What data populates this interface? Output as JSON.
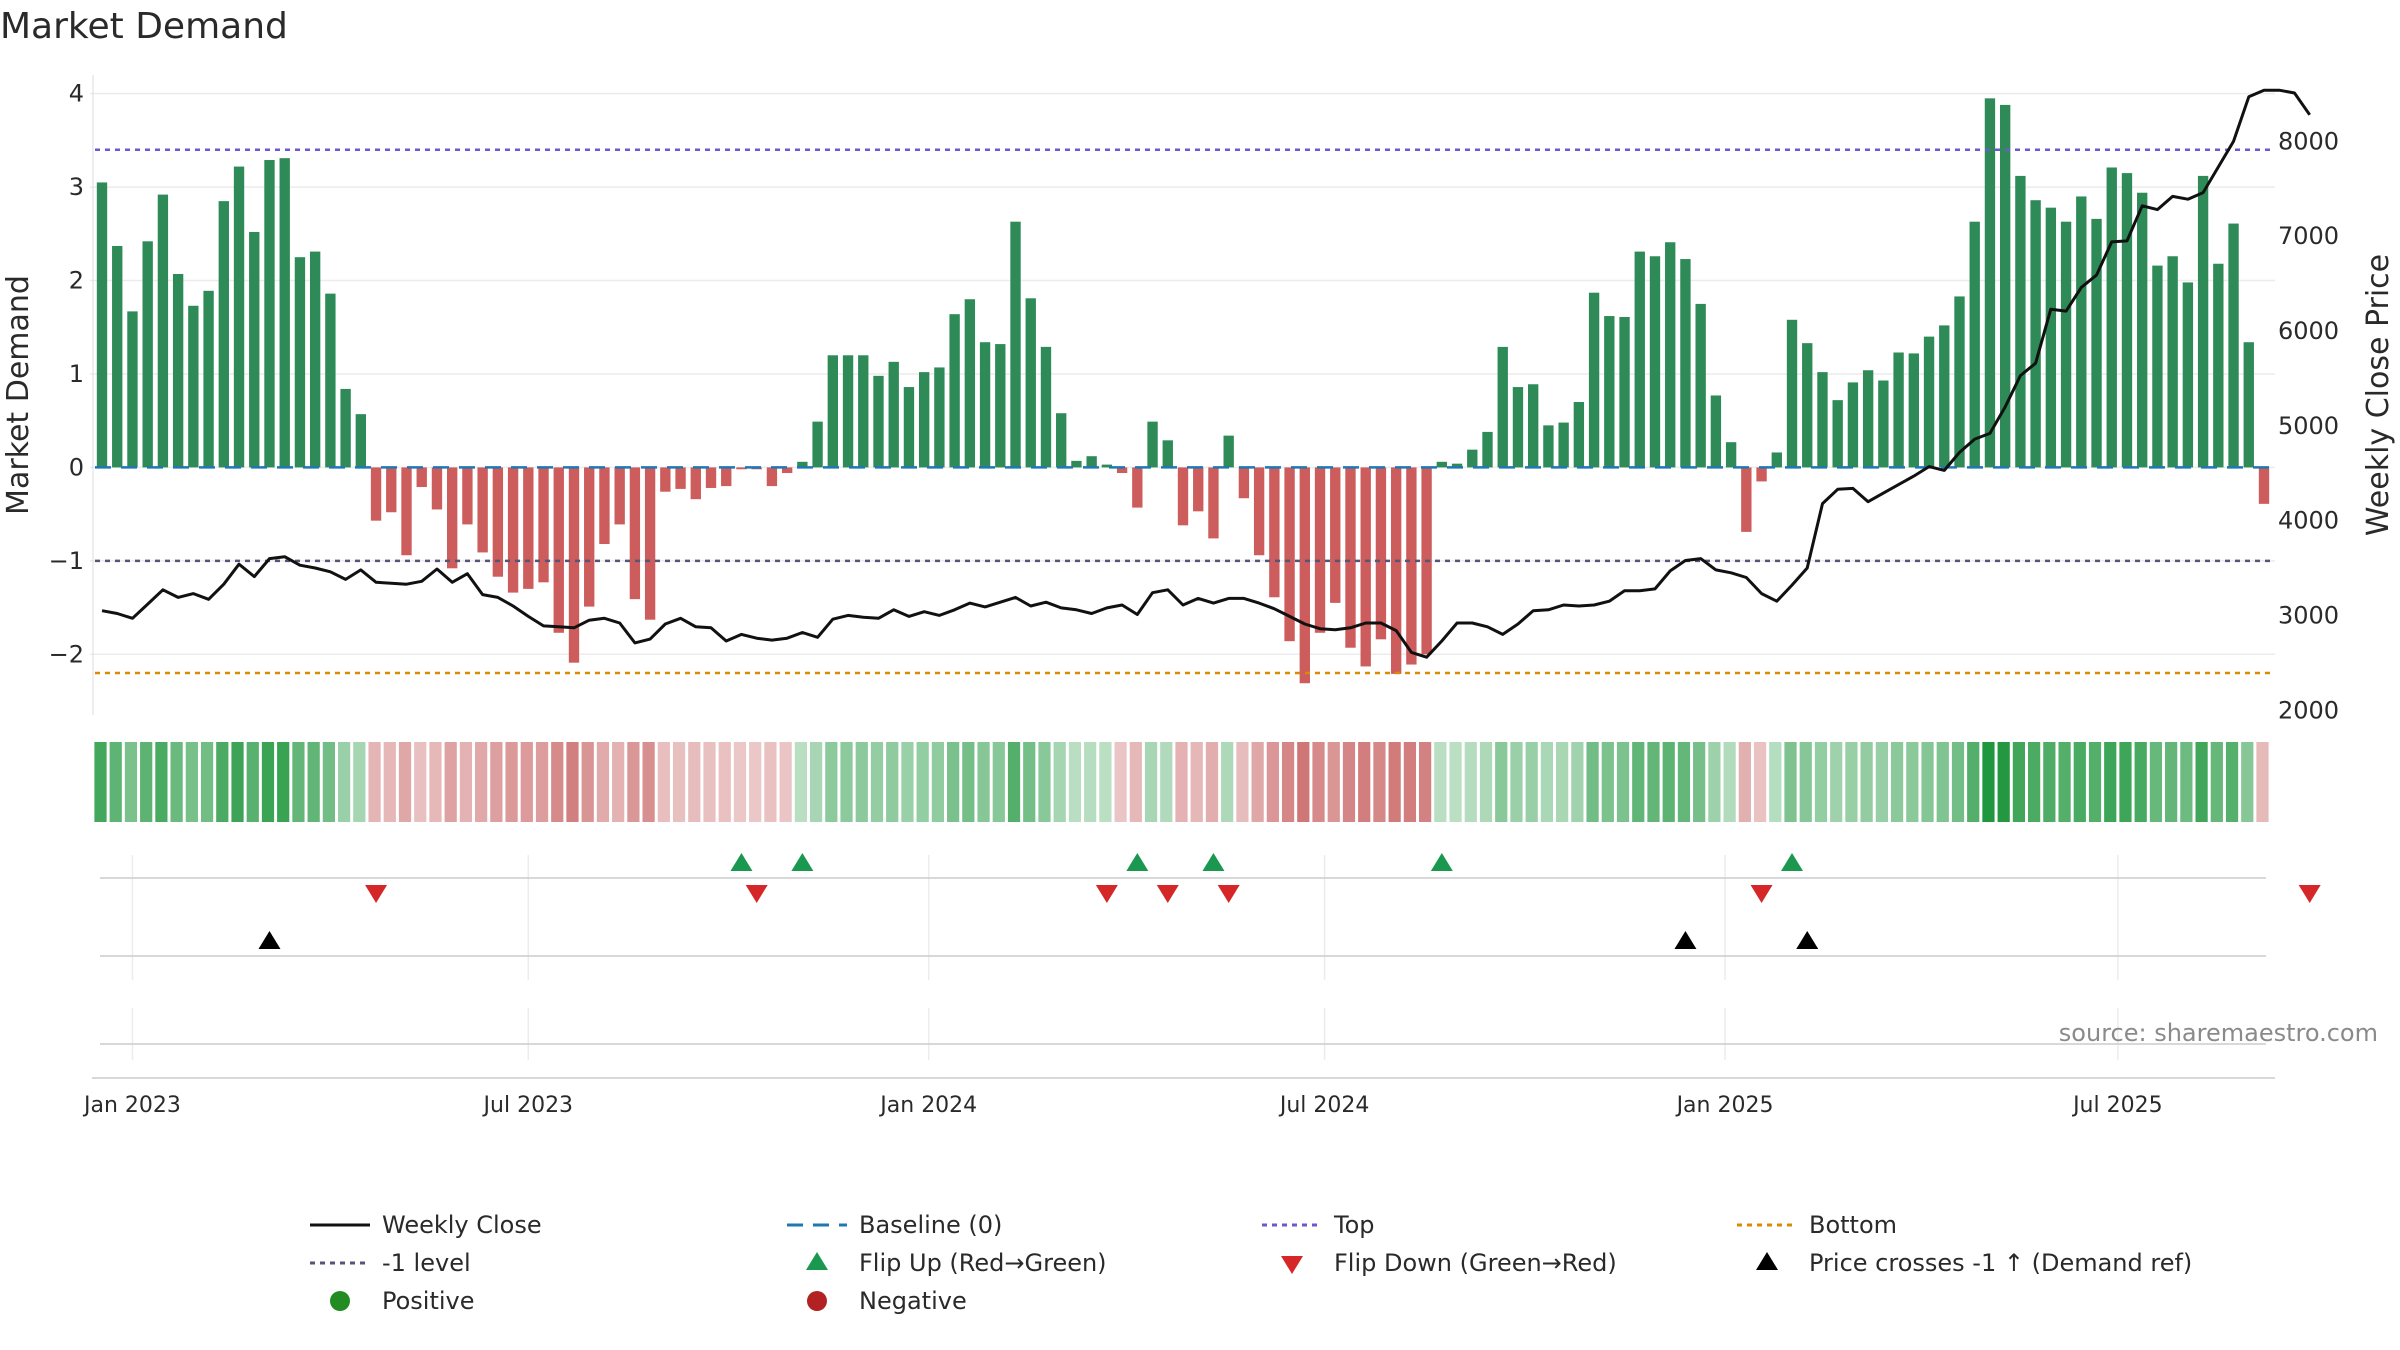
{
  "chart_data": {
    "type": "bar",
    "title": "Market Demand",
    "ylabel_left": "Market Demand",
    "ylabel_right": "Weekly Close Price",
    "ylim_left": [
      -2.65,
      4.2
    ],
    "ylim_right": [
      1950,
      8700
    ],
    "yticks_left": [
      "4",
      "3",
      "2",
      "1",
      "0",
      "−1",
      "−2"
    ],
    "yticks_left_values": [
      4,
      3,
      2,
      1,
      0,
      -1,
      -2
    ],
    "yticks_right": [
      "8000",
      "7000",
      "6000",
      "5000",
      "4000",
      "3000",
      "2000"
    ],
    "yticks_right_values": [
      8000,
      7000,
      6000,
      5000,
      4000,
      3000,
      2000
    ],
    "reference_lines": {
      "top": 3.4,
      "minus_one": -1,
      "bottom": -2.2,
      "baseline": 0
    },
    "x_start_date": "2022-12-19",
    "x_ticks": [
      {
        "label": "Jan 2023",
        "week": 2.0
      },
      {
        "label": "Jul 2023",
        "week": 28.0
      },
      {
        "label": "Jan 2024",
        "week": 54.3
      },
      {
        "label": "Jul 2024",
        "week": 80.3
      },
      {
        "label": "Jan 2025",
        "week": 106.6
      },
      {
        "label": "Jul 2025",
        "week": 132.4
      }
    ],
    "demand": [
      3.05,
      2.37,
      1.67,
      2.42,
      2.92,
      2.07,
      1.73,
      1.89,
      2.85,
      3.22,
      2.52,
      3.29,
      3.31,
      2.25,
      2.31,
      1.86,
      0.84,
      0.57,
      -0.57,
      -0.48,
      -0.94,
      -0.21,
      -0.45,
      -1.08,
      -0.61,
      -0.91,
      -1.17,
      -1.34,
      -1.3,
      -1.23,
      -1.77,
      -2.09,
      -1.49,
      -0.82,
      -0.61,
      -1.41,
      -1.63,
      -0.26,
      -0.23,
      -0.34,
      -0.22,
      -0.2,
      -0.02,
      -0.02,
      -0.2,
      -0.06,
      0.06,
      0.49,
      1.2,
      1.2,
      1.2,
      0.98,
      1.13,
      0.86,
      1.02,
      1.07,
      1.64,
      1.8,
      1.34,
      1.32,
      2.63,
      1.81,
      1.29,
      0.58,
      0.07,
      0.12,
      0.03,
      -0.06,
      -0.43,
      0.49,
      0.29,
      -0.62,
      -0.47,
      -0.76,
      0.34,
      -0.33,
      -0.94,
      -1.39,
      -1.86,
      -2.31,
      -1.77,
      -1.45,
      -1.93,
      -2.13,
      -1.84,
      -2.21,
      -2.11,
      -2.0,
      0.06,
      0.04,
      0.19,
      0.38,
      1.29,
      0.86,
      0.89,
      0.45,
      0.48,
      0.7,
      1.87,
      1.62,
      1.61,
      2.31,
      2.26,
      2.41,
      2.23,
      1.75,
      0.77,
      0.27,
      -0.69,
      -0.15,
      0.16,
      1.58,
      1.33,
      1.02,
      0.72,
      0.91,
      1.04,
      0.93,
      1.23,
      1.22,
      1.4,
      1.52,
      1.83,
      2.63,
      3.95,
      3.88,
      3.12,
      2.86,
      2.78,
      2.63,
      2.9,
      2.66,
      3.21,
      3.15,
      2.94,
      2.16,
      2.26,
      1.98,
      3.12,
      2.18,
      2.61,
      1.34,
      -0.39
    ],
    "weekly_close": [
      3050,
      3020,
      2970,
      3120,
      3270,
      3190,
      3230,
      3170,
      3330,
      3540,
      3410,
      3600,
      3620,
      3530,
      3500,
      3460,
      3380,
      3480,
      3350,
      3340,
      3330,
      3360,
      3490,
      3350,
      3440,
      3220,
      3190,
      3100,
      2990,
      2890,
      2880,
      2870,
      2950,
      2970,
      2920,
      2710,
      2750,
      2910,
      2970,
      2880,
      2870,
      2730,
      2800,
      2760,
      2740,
      2760,
      2820,
      2770,
      2960,
      3000,
      2980,
      2970,
      3060,
      2990,
      3040,
      3000,
      3060,
      3130,
      3090,
      3140,
      3190,
      3100,
      3140,
      3080,
      3060,
      3020,
      3080,
      3110,
      3010,
      3240,
      3270,
      3110,
      3180,
      3130,
      3180,
      3180,
      3130,
      3070,
      2990,
      2910,
      2860,
      2850,
      2870,
      2920,
      2920,
      2840,
      2610,
      2560,
      2730,
      2920,
      2920,
      2880,
      2800,
      2910,
      3050,
      3060,
      3110,
      3100,
      3110,
      3150,
      3260,
      3260,
      3280,
      3470,
      3580,
      3600,
      3480,
      3450,
      3400,
      3230,
      3150,
      3320,
      3500,
      4180,
      4330,
      4340,
      4200,
      4290,
      4380,
      4470,
      4570,
      4530,
      4720,
      4860,
      4920,
      5200,
      5530,
      5660,
      6230,
      6210,
      6460,
      6590,
      6940,
      6950,
      7320,
      7280,
      7420,
      7390,
      7460,
      7730,
      8000,
      8470,
      8540,
      8540,
      8510,
      8280
    ],
    "flip_up_weeks": [
      42,
      46,
      68,
      73,
      88,
      111
    ],
    "flip_down_weeks": [
      18,
      43,
      66,
      70,
      74,
      109,
      145
    ],
    "price_cross_weeks": [
      11,
      104,
      112
    ],
    "legend": [
      {
        "key": "weekly_close",
        "label": "Weekly Close"
      },
      {
        "key": "baseline",
        "label": "Baseline (0)"
      },
      {
        "key": "top",
        "label": "Top"
      },
      {
        "key": "bottom",
        "label": "Bottom"
      },
      {
        "key": "minus_one",
        "label": "-1 level"
      },
      {
        "key": "flip_up",
        "label": "Flip Up (Red→Green)"
      },
      {
        "key": "flip_down",
        "label": "Flip Down (Green→Red)"
      },
      {
        "key": "price_cross",
        "label": "Price crosses -1 ↑ (Demand ref)"
      },
      {
        "key": "positive",
        "label": "Positive"
      },
      {
        "key": "negative",
        "label": "Negative"
      }
    ],
    "source": "source: sharemaestro.com"
  },
  "colors": {
    "positive_bar": "#2e8b57",
    "negative_bar": "#cd5c5c",
    "price_line": "#111111",
    "baseline": "#1f77b4",
    "top_line": "#6a5acd",
    "bottom_line": "#d98c00",
    "minus_one_line": "#555577",
    "flip_up": "#1a9850",
    "flip_down": "#d62728",
    "price_cross": "#000000",
    "positive_dot": "#228b22",
    "negative_dot": "#b22222"
  }
}
